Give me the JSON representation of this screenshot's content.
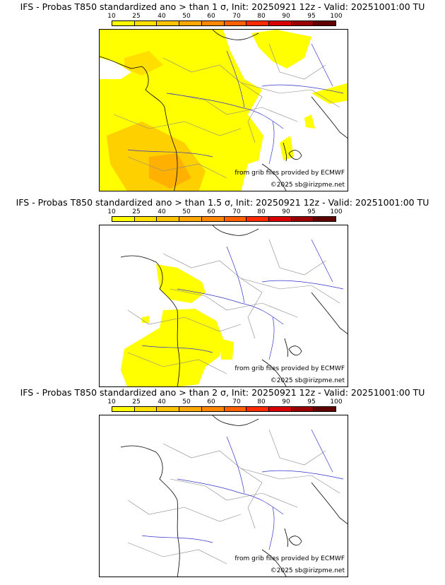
{
  "colorbar": {
    "ticks": [
      "10",
      "25",
      "40",
      "50",
      "60",
      "70",
      "80",
      "90",
      "95",
      "100"
    ],
    "colors": [
      "#ffff00",
      "#ffe000",
      "#ffc400",
      "#ffa800",
      "#ff8800",
      "#ff6000",
      "#ff2a00",
      "#d80000",
      "#9a0000",
      "#600000"
    ]
  },
  "panels": [
    {
      "title": "IFS - Probas T850  standardized ano > than 1 σ, Init: 20250921 12z - Valid: 20251001:00 TU",
      "credit": "from grib files provided by ECMWF",
      "copyright": "©2025 sb@irizpme.net",
      "coverage": "high"
    },
    {
      "title": "IFS - Probas T850  standardized ano > than 1.5 σ, Init: 20250921 12z - Valid: 20251001:00 TU",
      "credit": "from grib files provided by ECMWF",
      "copyright": "©2025 sb@irizpme.net",
      "coverage": "medium"
    },
    {
      "title": "IFS - Probas T850  standardized ano > than 2 σ, Init: 20250921 12z - Valid: 20251001:00 TU",
      "credit": "from grib files provided by ECMWF",
      "copyright": "©2025 sb@irizpme.net",
      "coverage": "none"
    }
  ]
}
